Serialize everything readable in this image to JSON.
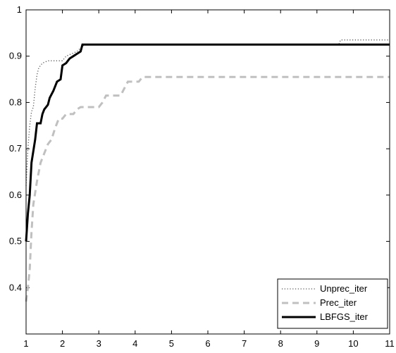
{
  "chart_data": {
    "type": "line",
    "title": "",
    "xlabel": "",
    "ylabel": "",
    "xlim": [
      1,
      11
    ],
    "ylim": [
      0.3,
      1.0
    ],
    "x_ticks": [
      1,
      2,
      3,
      4,
      5,
      6,
      7,
      8,
      9,
      10,
      11
    ],
    "y_ticks": [
      0.4,
      0.5,
      0.6,
      0.7,
      0.8,
      0.9,
      1
    ],
    "y_tick_labels": [
      "0.4",
      "0.5",
      "0.6",
      "0.7",
      "0.8",
      "0.9",
      "1"
    ],
    "grid": false,
    "legend_position": "bottom-right",
    "series": [
      {
        "name": "Unprec_iter",
        "style": "dotted",
        "color": "#555555",
        "points": [
          [
            1.0,
            0.62
          ],
          [
            1.05,
            0.7
          ],
          [
            1.1,
            0.75
          ],
          [
            1.15,
            0.78
          ],
          [
            1.2,
            0.79
          ],
          [
            1.25,
            0.83
          ],
          [
            1.3,
            0.86
          ],
          [
            1.35,
            0.875
          ],
          [
            1.45,
            0.885
          ],
          [
            1.6,
            0.89
          ],
          [
            2.0,
            0.89
          ],
          [
            2.1,
            0.9
          ],
          [
            2.4,
            0.91
          ],
          [
            2.6,
            0.925
          ],
          [
            9.6,
            0.925
          ],
          [
            9.65,
            0.935
          ],
          [
            11.0,
            0.935
          ]
        ]
      },
      {
        "name": "Prec_iter",
        "style": "dashed",
        "color": "#c0c0c0",
        "points": [
          [
            1.0,
            0.37
          ],
          [
            1.05,
            0.4
          ],
          [
            1.1,
            0.44
          ],
          [
            1.15,
            0.52
          ],
          [
            1.2,
            0.58
          ],
          [
            1.3,
            0.63
          ],
          [
            1.4,
            0.67
          ],
          [
            1.5,
            0.69
          ],
          [
            1.6,
            0.71
          ],
          [
            1.7,
            0.72
          ],
          [
            1.8,
            0.745
          ],
          [
            1.9,
            0.765
          ],
          [
            2.0,
            0.765
          ],
          [
            2.1,
            0.775
          ],
          [
            2.3,
            0.775
          ],
          [
            2.4,
            0.785
          ],
          [
            2.5,
            0.79
          ],
          [
            3.0,
            0.79
          ],
          [
            3.1,
            0.8
          ],
          [
            3.2,
            0.815
          ],
          [
            3.6,
            0.815
          ],
          [
            3.7,
            0.83
          ],
          [
            3.8,
            0.845
          ],
          [
            4.1,
            0.845
          ],
          [
            4.2,
            0.855
          ],
          [
            11.0,
            0.855
          ]
        ]
      },
      {
        "name": "LBFGS_iter",
        "style": "solid",
        "color": "#000000",
        "points": [
          [
            1.0,
            0.5
          ],
          [
            1.05,
            0.56
          ],
          [
            1.1,
            0.6
          ],
          [
            1.15,
            0.67
          ],
          [
            1.25,
            0.72
          ],
          [
            1.3,
            0.755
          ],
          [
            1.4,
            0.755
          ],
          [
            1.45,
            0.775
          ],
          [
            1.5,
            0.785
          ],
          [
            1.6,
            0.795
          ],
          [
            1.65,
            0.81
          ],
          [
            1.75,
            0.825
          ],
          [
            1.8,
            0.835
          ],
          [
            1.85,
            0.845
          ],
          [
            1.95,
            0.85
          ],
          [
            2.0,
            0.88
          ],
          [
            2.1,
            0.885
          ],
          [
            2.2,
            0.895
          ],
          [
            2.3,
            0.9
          ],
          [
            2.4,
            0.905
          ],
          [
            2.5,
            0.91
          ],
          [
            2.55,
            0.925
          ],
          [
            11.0,
            0.925
          ]
        ]
      }
    ]
  }
}
